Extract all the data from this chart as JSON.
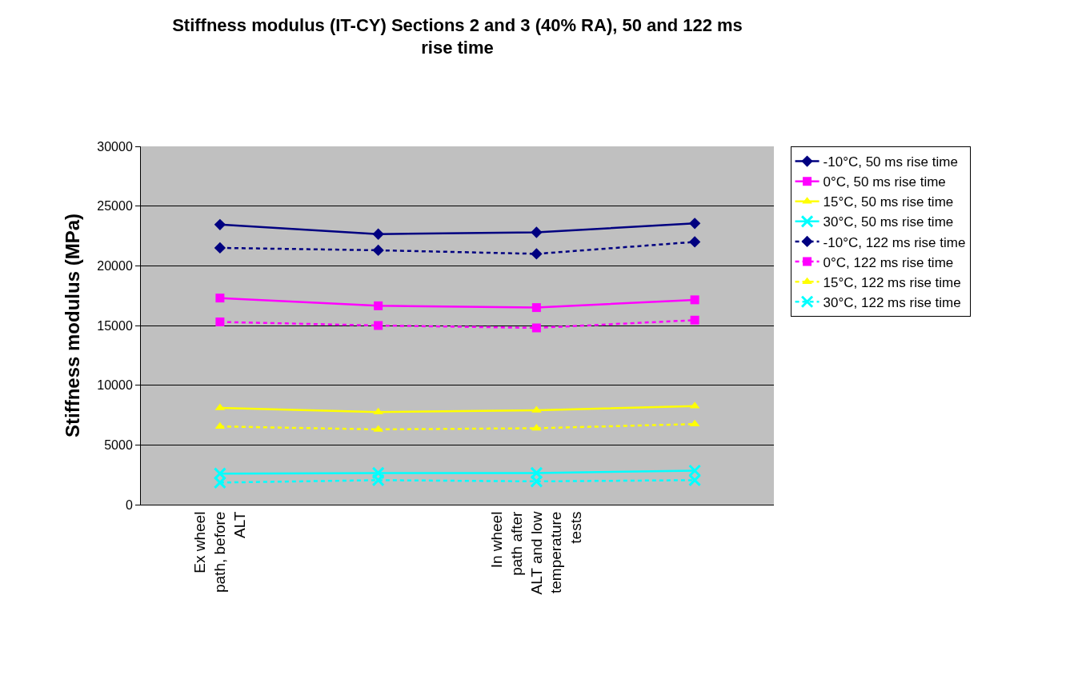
{
  "chart_data": {
    "type": "line",
    "title": "Stiffness modulus (IT-CY) Sections 2 and 3 (40% RA), 50 and 122 ms rise time",
    "ylabel": "Stiffness modulus (MPa)",
    "categories": [
      "Ex wheel path, before ALT",
      null,
      "In wheel path after ALT and low temperature tests",
      null
    ],
    "ylim": [
      0,
      30000
    ],
    "yticks": [
      0,
      5000,
      10000,
      15000,
      20000,
      25000,
      30000
    ],
    "grid": "y",
    "legend": "right",
    "series": [
      {
        "name": "-10°C, 50 ms rise time",
        "color": "#000080",
        "marker": "diamond",
        "line_style": "solid",
        "values": [
          23450,
          22650,
          22800,
          23550
        ]
      },
      {
        "name": "0°C, 50 ms rise time",
        "color": "#ff00ff",
        "marker": "square",
        "line_style": "solid",
        "values": [
          17300,
          16650,
          16500,
          17150
        ]
      },
      {
        "name": "15°C, 50 ms rise time",
        "color": "#ffff00",
        "marker": "triangle",
        "line_style": "solid",
        "values": [
          8100,
          7750,
          7900,
          8250
        ]
      },
      {
        "name": "30°C, 50 ms rise time",
        "color": "#00ffff",
        "marker": "cross",
        "line_style": "solid",
        "values": [
          2600,
          2650,
          2650,
          2850
        ]
      },
      {
        "name": "-10°C, 122 ms rise time",
        "color": "#000080",
        "marker": "diamond",
        "line_style": "dashed",
        "values": [
          21500,
          21300,
          21000,
          22000
        ]
      },
      {
        "name": "0°C, 122 ms rise time",
        "color": "#ff00ff",
        "marker": "square",
        "line_style": "dashed",
        "values": [
          15300,
          15000,
          14800,
          15450
        ]
      },
      {
        "name": "15°C, 122 ms rise time",
        "color": "#ffff00",
        "marker": "triangle",
        "line_style": "dashed",
        "values": [
          6550,
          6300,
          6400,
          6750
        ]
      },
      {
        "name": "30°C, 122 ms rise time",
        "color": "#00ffff",
        "marker": "cross",
        "line_style": "dashed",
        "values": [
          1850,
          2050,
          1950,
          2050
        ]
      }
    ]
  }
}
